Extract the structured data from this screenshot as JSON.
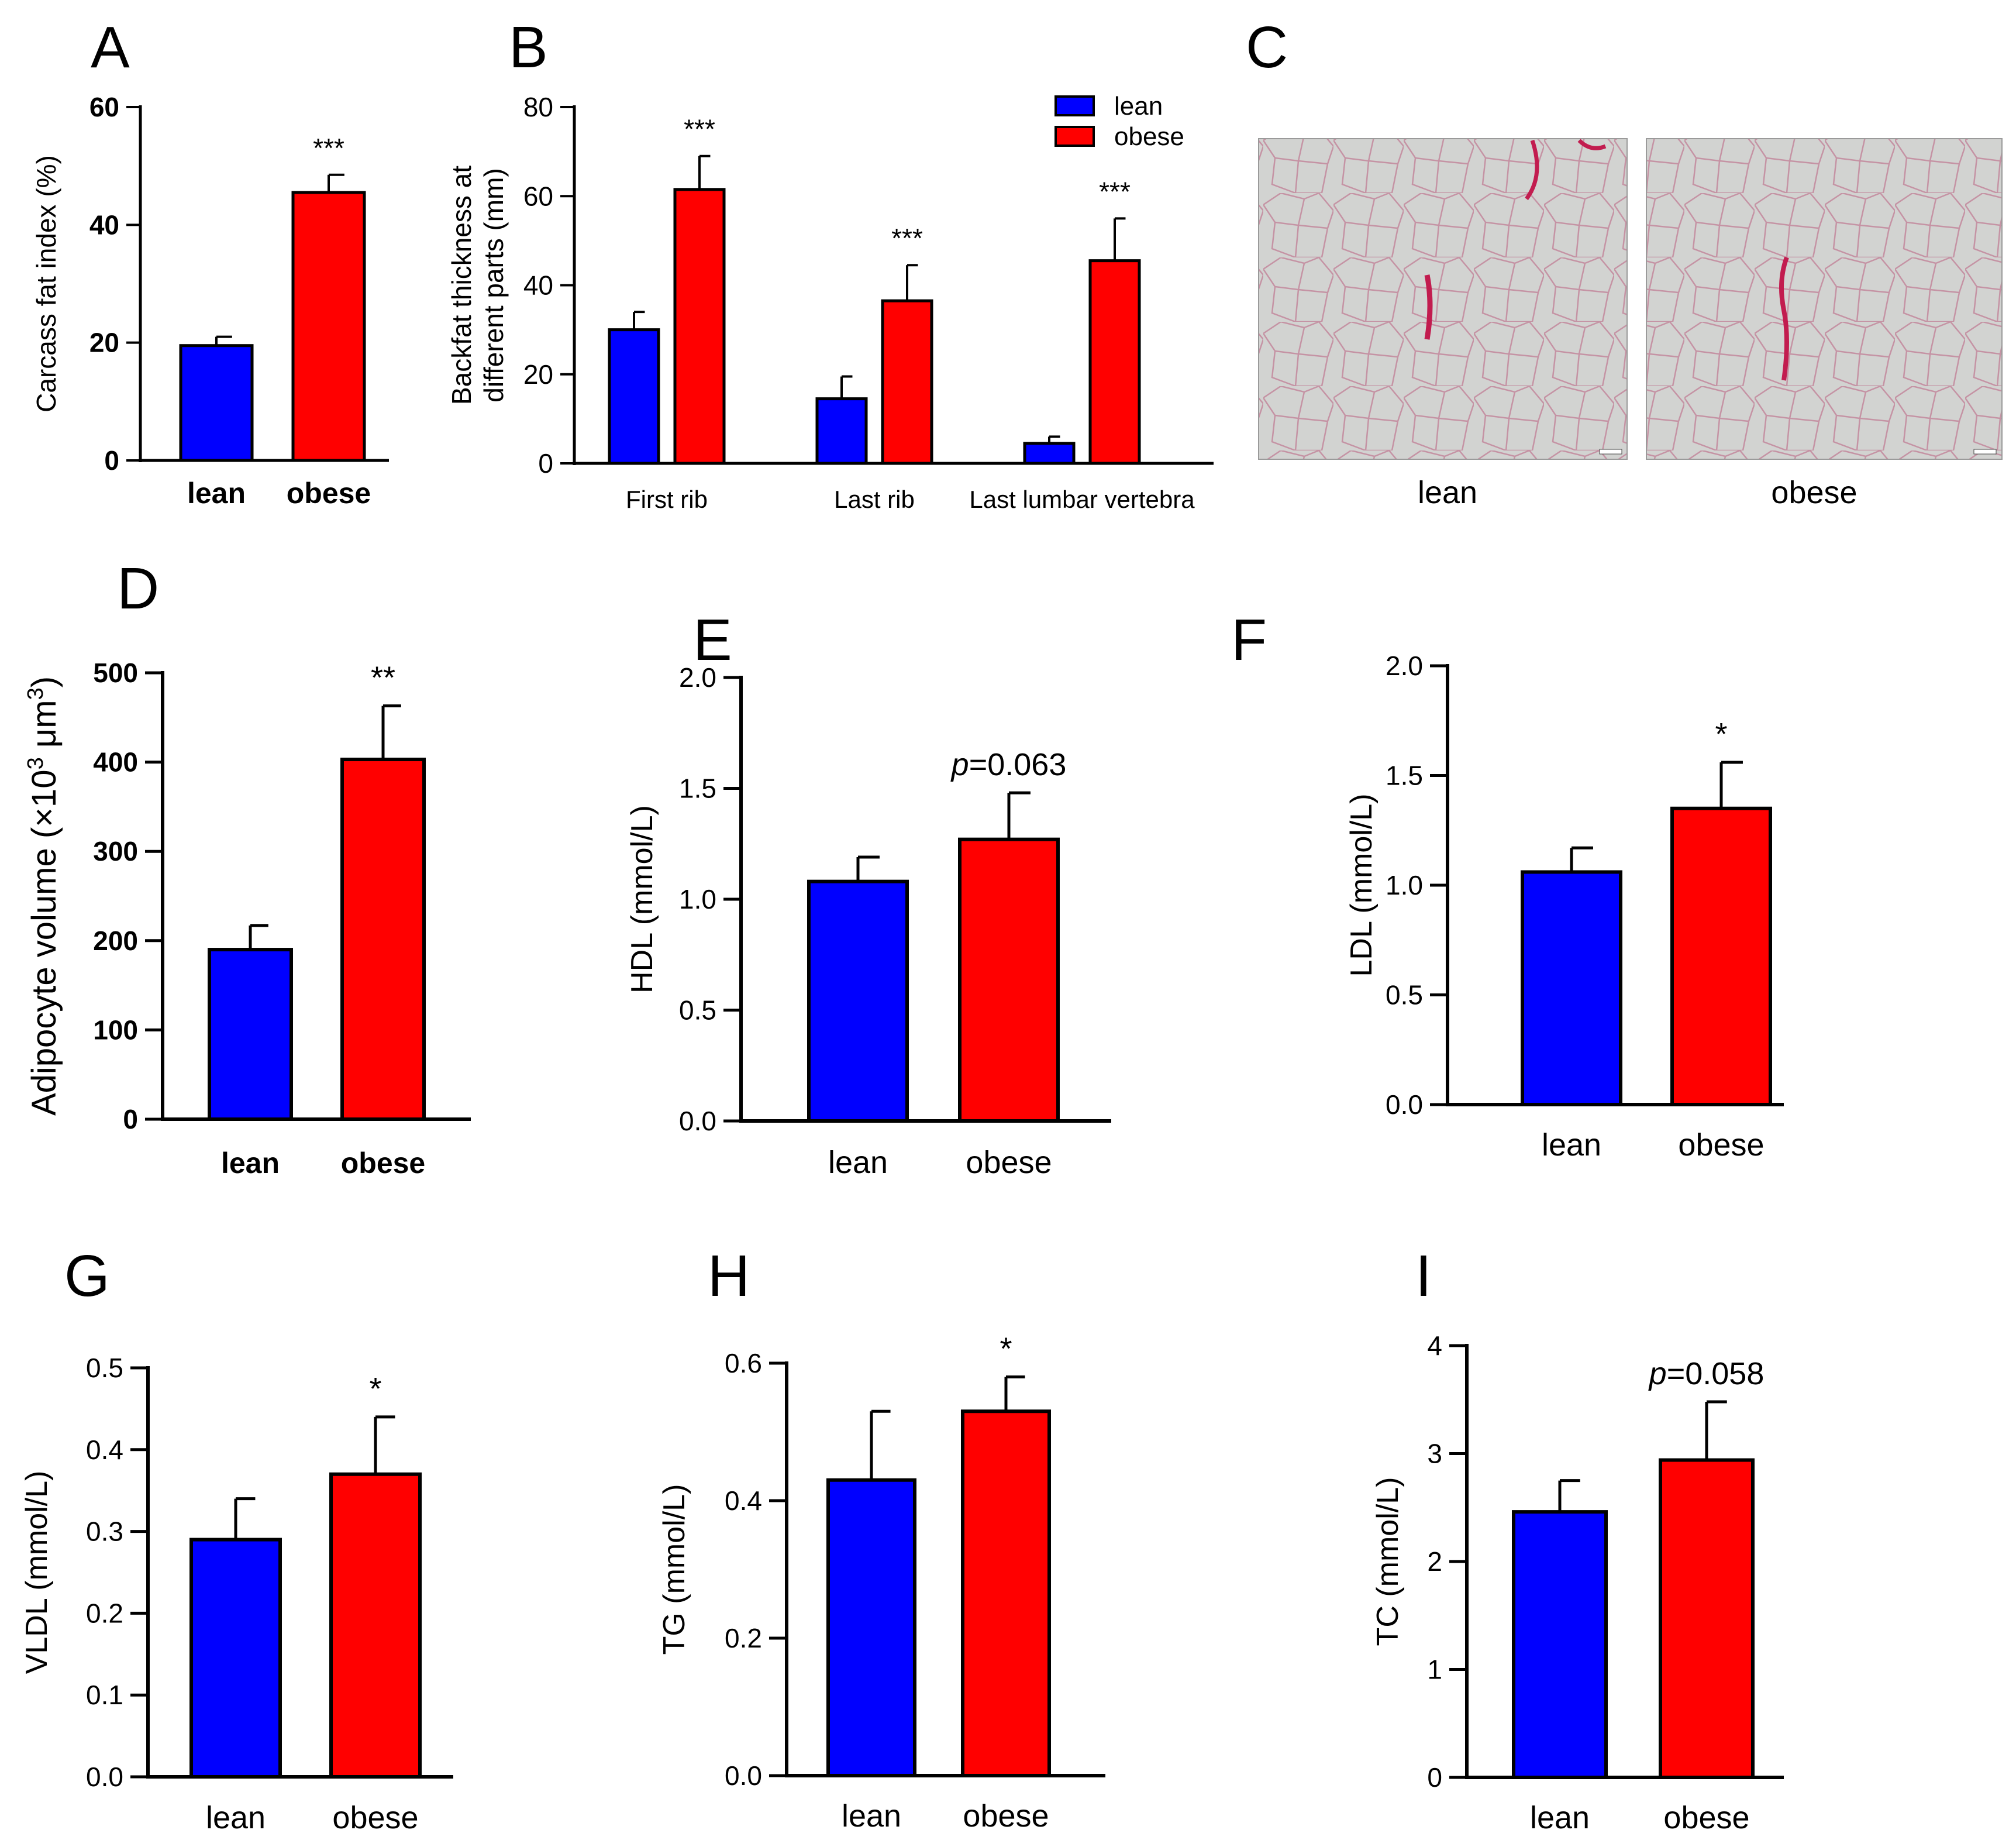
{
  "colors": {
    "lean": "#0000ff",
    "obese": "#ff0000",
    "axis": "#000000"
  },
  "legend": {
    "entries": [
      "lean",
      "obese"
    ]
  },
  "histology": {
    "letter": "C",
    "images": [
      {
        "label": "lean"
      },
      {
        "label": "obese"
      }
    ]
  },
  "chart_data": [
    {
      "panel": "A",
      "type": "bar",
      "title": "",
      "ylabel": "Carcass fat index (%)",
      "xlabel": "",
      "categories": [
        "lean",
        "obese"
      ],
      "values": [
        19.5,
        45.5
      ],
      "errors": [
        1.5,
        3.0
      ],
      "ylim": [
        0,
        60
      ],
      "yticks": [
        "0",
        "20",
        "40",
        "60"
      ],
      "significance": [
        "",
        "***"
      ]
    },
    {
      "panel": "B",
      "type": "bar",
      "title": "",
      "ylabel_line1": "Backfat thickness at",
      "ylabel_line2": "different parts (mm)",
      "categories": [
        "First rib",
        "Last rib",
        "Last lumbar vertebra"
      ],
      "series": [
        {
          "name": "lean",
          "values": [
            30,
            14.5,
            4.5
          ],
          "errors": [
            4,
            5,
            1.5
          ]
        },
        {
          "name": "obese",
          "values": [
            61.5,
            36.5,
            45.5
          ],
          "errors": [
            7.5,
            8,
            9.5
          ]
        }
      ],
      "ylim": [
        0,
        80
      ],
      "yticks": [
        "0",
        "20",
        "40",
        "60",
        "80"
      ],
      "significance": [
        "***",
        "***",
        "***"
      ],
      "legend_position": "top-right"
    },
    {
      "panel": "D",
      "type": "bar",
      "title": "",
      "ylabel": "Adipocyte volume (×10",
      "ylabel_sup": "3",
      "ylabel_mid": " μm",
      "ylabel_sup2": "3",
      "ylabel_end": ")",
      "categories": [
        "lean",
        "obese"
      ],
      "values": [
        190,
        403
      ],
      "errors": [
        27,
        60
      ],
      "ylim": [
        0,
        500
      ],
      "yticks": [
        "0",
        "100",
        "200",
        "300",
        "400",
        "500"
      ],
      "significance": [
        "",
        "**"
      ]
    },
    {
      "panel": "E",
      "type": "bar",
      "title": "",
      "ylabel": "HDL (mmol/L)",
      "categories": [
        "lean",
        "obese"
      ],
      "values": [
        1.08,
        1.27
      ],
      "errors": [
        0.11,
        0.21
      ],
      "ylim": [
        0,
        2.0
      ],
      "yticks": [
        "0.0",
        "0.5",
        "1.0",
        "1.5",
        "2.0"
      ],
      "significance": [
        "",
        "=0.063"
      ],
      "p_prefix": "p"
    },
    {
      "panel": "F",
      "type": "bar",
      "title": "",
      "ylabel": "LDL (mmol/L)",
      "categories": [
        "lean",
        "obese"
      ],
      "values": [
        1.06,
        1.35
      ],
      "errors": [
        0.11,
        0.21
      ],
      "ylim": [
        0,
        2.0
      ],
      "yticks": [
        "0.0",
        "0.5",
        "1.0",
        "1.5",
        "2.0"
      ],
      "significance": [
        "",
        "*"
      ]
    },
    {
      "panel": "G",
      "type": "bar",
      "title": "",
      "ylabel": "VLDL (mmol/L)",
      "categories": [
        "lean",
        "obese"
      ],
      "values": [
        0.29,
        0.37
      ],
      "errors": [
        0.05,
        0.07
      ],
      "ylim": [
        0,
        0.5
      ],
      "yticks": [
        "0.0",
        "0.1",
        "0.2",
        "0.3",
        "0.4",
        "0.5"
      ],
      "significance": [
        "",
        "*"
      ]
    },
    {
      "panel": "H",
      "type": "bar",
      "title": "",
      "ylabel": "TG (mmol/L)",
      "categories": [
        "lean",
        "obese"
      ],
      "values": [
        0.43,
        0.53
      ],
      "errors": [
        0.1,
        0.05
      ],
      "ylim": [
        0,
        0.6
      ],
      "yticks": [
        "0.0",
        "0.2",
        "0.4",
        "0.6"
      ],
      "significance": [
        "",
        "*"
      ]
    },
    {
      "panel": "I",
      "type": "bar",
      "title": "",
      "ylabel": "TC (mmol/L)",
      "categories": [
        "lean",
        "obese"
      ],
      "values": [
        2.46,
        2.94
      ],
      "errors": [
        0.29,
        0.54
      ],
      "ylim": [
        0,
        4
      ],
      "yticks": [
        "0",
        "1",
        "2",
        "3",
        "4"
      ],
      "significance": [
        "",
        "=0.058"
      ],
      "p_prefix": "p"
    }
  ]
}
